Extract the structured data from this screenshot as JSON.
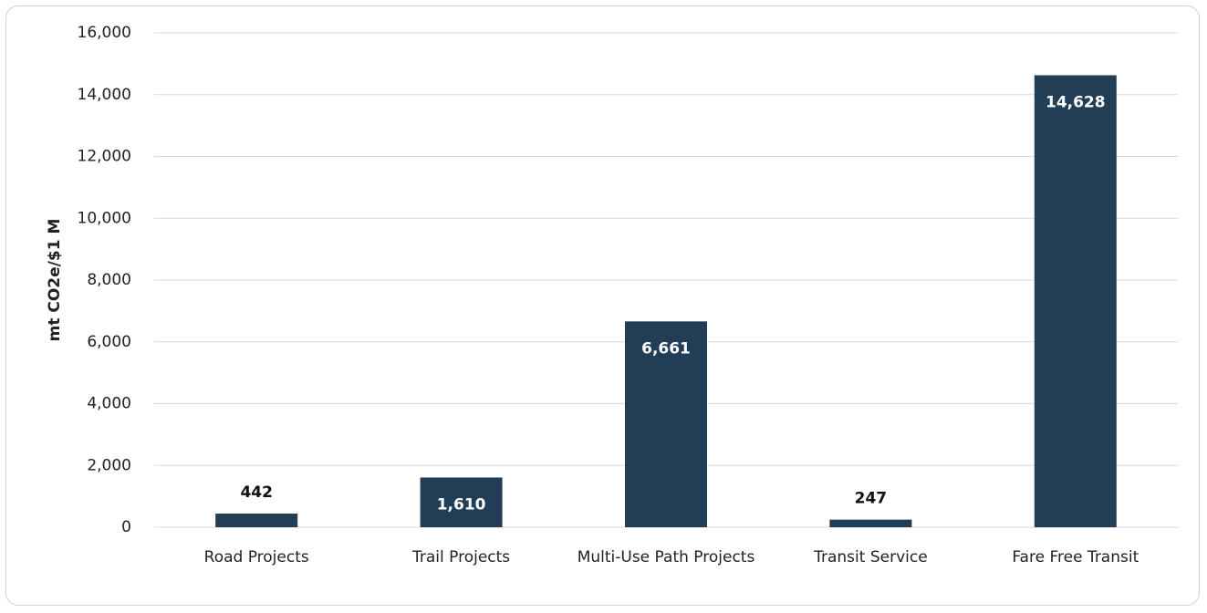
{
  "chart_data": {
    "type": "bar",
    "y_label": "mt CO2e/$1 M",
    "categories": [
      "Road Projects",
      "Trail Projects",
      "Multi-Use Path Projects",
      "Transit Service",
      "Fare Free Transit"
    ],
    "values": [
      442,
      1610,
      6661,
      247,
      14628
    ],
    "value_labels": [
      "442",
      "1,610",
      "6,661",
      "247",
      "14,628"
    ],
    "color": "#223d56",
    "ylim": [
      0,
      16000
    ],
    "yticks": [
      0,
      {
        "value": 2000,
        "label": "2,000"
      },
      {
        "value": 4000,
        "label": "4,000"
      },
      {
        "value": 6000,
        "label": "6,000"
      },
      {
        "value": 8000,
        "label": "8,000"
      },
      {
        "value": 10000,
        "label": "10,000"
      },
      {
        "value": 12000,
        "label": "12,000"
      },
      {
        "value": 14000,
        "label": "14,000"
      },
      {
        "value": 16000,
        "label": "16,000"
      }
    ],
    "grid": true
  }
}
